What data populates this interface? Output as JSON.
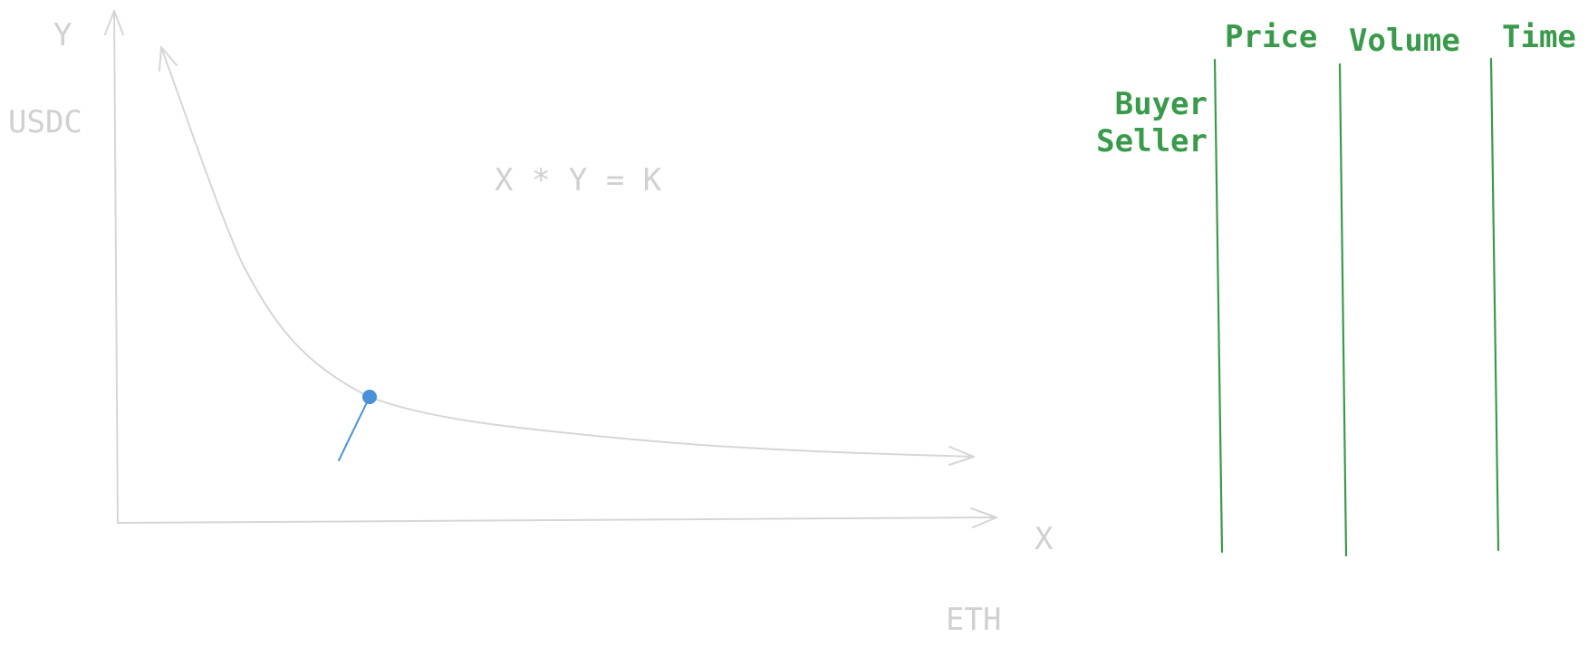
{
  "chart": {
    "y_axis_label": "Y",
    "y_axis_unit": "USDC",
    "x_axis_label": "X",
    "x_axis_unit": "ETH",
    "formula": "X * Y = K"
  },
  "columns": {
    "price": "Price",
    "volume": "Volume",
    "time": "Time",
    "buyer": "Buyer",
    "seller": "Seller"
  },
  "colors": {
    "axis": "#d6d6d6",
    "label": "#d0d0d0",
    "accent_green": "#3a9a4c",
    "point_blue": "#4a90d9"
  }
}
